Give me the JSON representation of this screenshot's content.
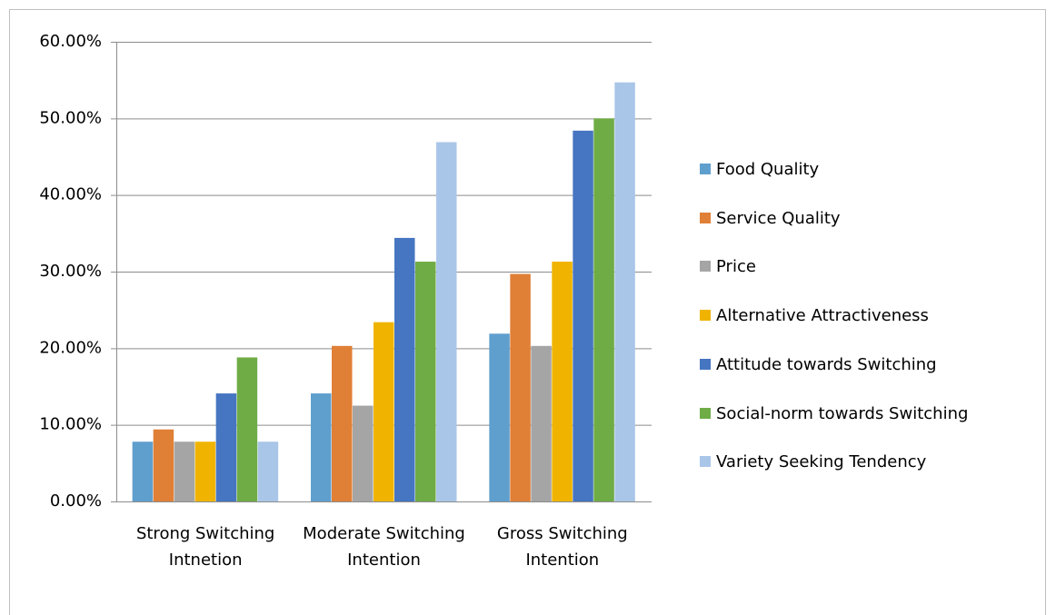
{
  "chart_data": {
    "type": "bar",
    "categories": [
      "Strong Switching Intnetion",
      "Moderate Switching Intention",
      "Gross Switching Intention"
    ],
    "series": [
      {
        "name": "Food Quality",
        "color": "#5f9fce",
        "values": [
          7.8,
          14.1,
          21.9
        ]
      },
      {
        "name": "Service Quality",
        "color": "#e07f36",
        "values": [
          9.4,
          20.3,
          29.7
        ]
      },
      {
        "name": "Price",
        "color": "#a5a5a5",
        "values": [
          7.8,
          12.5,
          20.3
        ]
      },
      {
        "name": "Alternative Attractiveness",
        "color": "#f0b400",
        "values": [
          7.8,
          23.4,
          31.3
        ]
      },
      {
        "name": "Attitude towards Switching",
        "color": "#4675c1",
        "values": [
          14.1,
          34.4,
          48.4
        ]
      },
      {
        "name": "Social-norm towards Switching",
        "color": "#6fac46",
        "values": [
          18.8,
          31.3,
          50.0
        ]
      },
      {
        "name": "Variety Seeking Tendency",
        "color": "#a9c6e8",
        "values": [
          7.8,
          46.9,
          54.7
        ]
      }
    ],
    "ylim": [
      0,
      60
    ],
    "yticks": [
      {
        "value": 0,
        "label": "0.00%"
      },
      {
        "value": 10,
        "label": "10.00%"
      },
      {
        "value": 20,
        "label": "20.00%"
      },
      {
        "value": 30,
        "label": "30.00%"
      },
      {
        "value": 40,
        "label": "40.00%"
      },
      {
        "value": 50,
        "label": "50.00%"
      },
      {
        "value": 60,
        "label": "60.00%"
      }
    ],
    "grid": true,
    "legend": "right"
  }
}
